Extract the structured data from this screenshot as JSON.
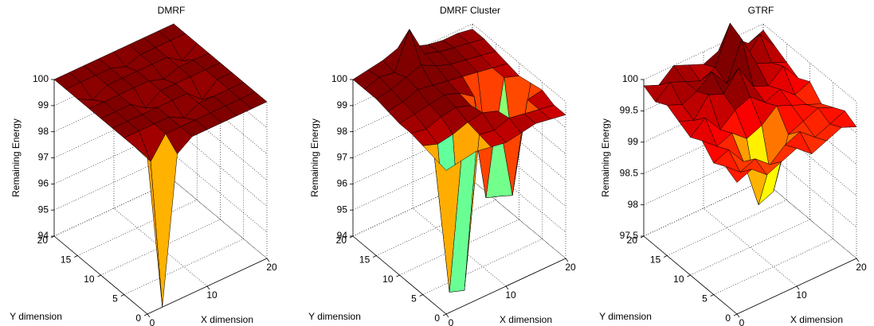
{
  "chart_data": [
    {
      "type": "surface",
      "title": "DMRF",
      "xlabel": "X dimension",
      "ylabel": "Y dimension",
      "zlabel": "Remaining Energy",
      "colormap": "jet",
      "grid": true,
      "xlim": [
        0,
        20
      ],
      "ylim": [
        0,
        20
      ],
      "zlim": [
        94,
        100
      ],
      "xticks": [
        0,
        10,
        20
      ],
      "yticks": [
        0,
        5,
        10,
        15,
        20
      ],
      "zticks": [
        94,
        95,
        96,
        97,
        98,
        99,
        100
      ],
      "x": [
        0,
        2.5,
        5,
        7.5,
        10,
        12.5,
        15,
        17.5,
        20
      ],
      "y": [
        0,
        2.5,
        5,
        7.5,
        10,
        12.5,
        15,
        17.5,
        20
      ],
      "z": [
        [
          100,
          94,
          99.6,
          100,
          100,
          100,
          100,
          100,
          100
        ],
        [
          100,
          99.2,
          100,
          100,
          100,
          100,
          100,
          100,
          100
        ],
        [
          100,
          100,
          100,
          100,
          99.7,
          100,
          100,
          100,
          100
        ],
        [
          100,
          100,
          100,
          100,
          100,
          100,
          99.5,
          100,
          100
        ],
        [
          100,
          100,
          100,
          99.6,
          100,
          100,
          100,
          100,
          100
        ],
        [
          100,
          100,
          100,
          100,
          100,
          99.8,
          100,
          100,
          100
        ],
        [
          100,
          99.7,
          100,
          100,
          100,
          100,
          100,
          99.6,
          100
        ],
        [
          100,
          100,
          100,
          100,
          99.8,
          100,
          100,
          100,
          100
        ],
        [
          100,
          100,
          100,
          100,
          100,
          100,
          100,
          100,
          100
        ]
      ]
    },
    {
      "type": "surface",
      "title": "DMRF Cluster",
      "xlabel": "X dimension",
      "ylabel": "Y dimension",
      "zlabel": "Remaining Energy",
      "colormap": "jet",
      "grid": true,
      "xlim": [
        0,
        20
      ],
      "ylim": [
        0,
        20
      ],
      "zlim": [
        94,
        100
      ],
      "xticks": [
        0,
        10,
        20
      ],
      "yticks": [
        0,
        5,
        10,
        15,
        20
      ],
      "zticks": [
        94,
        95,
        96,
        97,
        98,
        99,
        100
      ],
      "x": [
        0,
        2.5,
        5,
        7.5,
        10,
        12.5,
        15,
        17.5,
        20
      ],
      "y": [
        0,
        2.5,
        5,
        7.5,
        10,
        12.5,
        15,
        17.5,
        20
      ],
      "z": [
        [
          99.5,
          99.6,
          99.7,
          99.6,
          99.5,
          99.6,
          99.7,
          99.6,
          99.5
        ],
        [
          99.6,
          94.2,
          94,
          99.7,
          99.6,
          99.8,
          99.7,
          99.6,
          99.5
        ],
        [
          99.7,
          99.5,
          99.6,
          99.8,
          99.9,
          99.7,
          96.2,
          99.6,
          99.7
        ],
        [
          99.8,
          99.7,
          99.9,
          100,
          99.8,
          96,
          95.8,
          96.5,
          99.6
        ],
        [
          99.8,
          99.9,
          100,
          100.1,
          99.9,
          99.5,
          96.3,
          99.7,
          99.5
        ],
        [
          99.9,
          100,
          100.2,
          100.1,
          100,
          99.9,
          99.8,
          99.7,
          99.6
        ],
        [
          100,
          100.1,
          100.3,
          100.5,
          100.2,
          100,
          99.9,
          99.8,
          99.7
        ],
        [
          100,
          100.2,
          100.1,
          101.5,
          100.3,
          100.1,
          100,
          99.9,
          99.8
        ],
        [
          100,
          100.1,
          100.2,
          100.4,
          100.2,
          100,
          99.9,
          99.9,
          99.8
        ]
      ]
    },
    {
      "type": "surface",
      "title": "GTRF",
      "xlabel": "X dimension",
      "ylabel": "Y dimension",
      "zlabel": "Remaining Energy",
      "colormap": "jet",
      "grid": true,
      "xlim": [
        0,
        20
      ],
      "ylim": [
        0,
        20
      ],
      "zlim": [
        97.5,
        100
      ],
      "xticks": [
        0,
        10,
        20
      ],
      "yticks": [
        0,
        5,
        10,
        15,
        20
      ],
      "zticks": [
        97.5,
        98,
        98.5,
        99,
        99.5,
        100
      ],
      "x": [
        0,
        2.5,
        5,
        7.5,
        10,
        12.5,
        15,
        17.5,
        20
      ],
      "y": [
        0,
        2.5,
        5,
        7.5,
        10,
        12.5,
        15,
        17.5,
        20
      ],
      "z": [
        [
          99.6,
          99.7,
          99.5,
          99.6,
          99.7,
          99.5,
          99.6,
          99.7,
          99.6
        ],
        [
          99.7,
          99.5,
          99.6,
          99.4,
          99.6,
          99.7,
          99.5,
          99.6,
          99.7
        ],
        [
          99.6,
          99.7,
          99.4,
          98.6,
          98.7,
          99.5,
          99.6,
          99.7,
          99.6
        ],
        [
          99.8,
          99.6,
          99.7,
          99.5,
          99.6,
          99.8,
          99.7,
          99.6,
          99.5
        ],
        [
          99.7,
          99.9,
          99.6,
          99.8,
          99.9,
          99.7,
          99.8,
          99.6,
          99.7
        ],
        [
          99.8,
          99.7,
          100,
          99.9,
          100.2,
          99.8,
          99.7,
          99.9,
          99.6
        ],
        [
          99.9,
          99.8,
          99.9,
          100.1,
          99.8,
          100.4,
          99.9,
          99.8,
          99.7
        ],
        [
          99.8,
          100,
          99.9,
          99.8,
          99.9,
          100.5,
          99.8,
          100.1,
          99.8
        ],
        [
          99.9,
          99.8,
          100,
          99.9,
          99.8,
          99.9,
          100,
          99.8,
          99.9
        ]
      ]
    }
  ]
}
